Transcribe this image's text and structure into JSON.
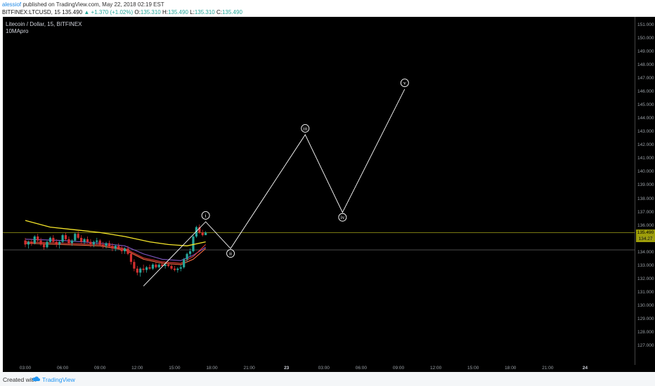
{
  "header": {
    "author": "alessiof",
    "published_text": "published on TradingView.com, May 22, 2018 02:19 EST",
    "symbol": "BITFINEX:LTCUSD, 15",
    "last": "135.490",
    "change_arrow": "▲",
    "change": "+1.370 (+1.02%)",
    "o_label": "O:",
    "o": "135.310",
    "h_label": "H:",
    "h": "135.490",
    "l_label": "L:",
    "l": "135.310",
    "c_label": "C:",
    "c": "135.490"
  },
  "chart_legend": {
    "title": "Litecoin / Dollar, 15, BITFINEX",
    "indicator": "10MApro"
  },
  "price_badges": {
    "last": "135.490",
    "ma": "134.27"
  },
  "footer": {
    "created_with": "Created with",
    "brand": "TradingView"
  },
  "wave_labels": [
    "i",
    "ii",
    "iii",
    "iv",
    "v"
  ],
  "colors": {
    "background": "#000000",
    "candle_up": "#26a69a",
    "candle_down": "#d32f2f",
    "ma_yellow": "#f5e52a",
    "wave_line": "#ffffff",
    "price_line": "#9e9e0a",
    "brand": "#2196f3"
  },
  "chart_data": {
    "type": "line",
    "title": "Litecoin / Dollar, 15, BITFINEX",
    "y_ticks": [
      "151.000",
      "150.000",
      "149.000",
      "148.000",
      "147.000",
      "146.000",
      "145.000",
      "144.000",
      "143.000",
      "142.000",
      "141.000",
      "140.000",
      "139.000",
      "138.000",
      "137.000",
      "136.000",
      "135.000",
      "134.000",
      "133.000",
      "132.000",
      "131.000",
      "130.000",
      "129.000",
      "128.000",
      "127.000"
    ],
    "ylim": [
      126.3,
      151.5
    ],
    "x_ticks": [
      "03:00",
      "06:00",
      "09:00",
      "12:00",
      "15:00",
      "18:00",
      "21:00",
      "23",
      "03:00",
      "06:00",
      "09:00",
      "12:00",
      "15:00",
      "18:00",
      "21:00",
      "24"
    ],
    "horizontal_levels": [
      135.49,
      134.2
    ],
    "series": [
      {
        "values": [
          131.5,
          136.3,
          134.3,
          142.8,
          137.0,
          146.2
        ],
        "time_index": [
          9.5,
          14.5,
          16.5,
          22.5,
          25.5,
          30.5
        ]
      }
    ],
    "candles": [
      [
        0.0,
        134.9,
        135.1,
        134.4,
        134.6
      ],
      [
        0.25,
        134.6,
        134.9,
        134.3,
        134.8
      ],
      [
        0.5,
        134.8,
        135.0,
        134.5,
        134.7
      ],
      [
        0.75,
        134.7,
        135.3,
        134.6,
        135.2
      ],
      [
        1.0,
        135.2,
        135.4,
        134.8,
        134.9
      ],
      [
        1.25,
        134.9,
        135.1,
        134.5,
        134.6
      ],
      [
        1.5,
        134.6,
        134.8,
        134.2,
        134.4
      ],
      [
        1.75,
        134.4,
        134.9,
        134.3,
        134.8
      ],
      [
        2.0,
        134.8,
        135.2,
        134.7,
        135.1
      ],
      [
        2.25,
        135.1,
        135.3,
        134.7,
        134.8
      ],
      [
        2.5,
        134.8,
        135.0,
        134.4,
        134.6
      ],
      [
        2.75,
        134.6,
        134.9,
        134.3,
        134.8
      ],
      [
        3.0,
        134.8,
        135.4,
        134.7,
        135.3
      ],
      [
        3.25,
        135.3,
        135.5,
        134.9,
        135.0
      ],
      [
        3.5,
        135.0,
        135.2,
        134.6,
        134.7
      ],
      [
        3.75,
        134.7,
        135.0,
        134.5,
        134.9
      ],
      [
        4.0,
        134.9,
        135.5,
        134.8,
        135.4
      ],
      [
        4.25,
        135.4,
        135.6,
        135.0,
        135.1
      ],
      [
        4.5,
        135.1,
        135.3,
        134.7,
        134.8
      ],
      [
        4.75,
        134.8,
        135.1,
        134.6,
        135.0
      ],
      [
        5.0,
        135.0,
        135.2,
        134.7,
        134.8
      ],
      [
        5.25,
        134.8,
        135.0,
        134.4,
        134.6
      ],
      [
        5.5,
        134.6,
        134.9,
        134.4,
        134.8
      ],
      [
        5.75,
        134.8,
        135.1,
        134.6,
        134.9
      ],
      [
        6.0,
        134.9,
        135.0,
        134.5,
        134.6
      ],
      [
        6.25,
        134.6,
        134.8,
        134.3,
        134.5
      ],
      [
        6.5,
        134.5,
        134.8,
        134.3,
        134.7
      ],
      [
        6.75,
        134.7,
        134.9,
        134.4,
        134.5
      ],
      [
        7.0,
        134.5,
        134.7,
        134.1,
        134.3
      ],
      [
        7.25,
        134.3,
        134.6,
        134.1,
        134.5
      ],
      [
        7.5,
        134.5,
        134.7,
        134.2,
        134.3
      ],
      [
        7.75,
        134.3,
        134.5,
        133.9,
        134.1
      ],
      [
        8.0,
        134.1,
        134.4,
        133.9,
        134.3
      ],
      [
        8.25,
        134.3,
        134.5,
        133.8,
        133.9
      ],
      [
        8.5,
        133.9,
        134.1,
        133.1,
        133.3
      ],
      [
        8.75,
        133.3,
        133.5,
        132.6,
        132.8
      ],
      [
        9.0,
        132.8,
        133.0,
        132.3,
        132.5
      ],
      [
        9.25,
        132.5,
        132.9,
        132.2,
        132.8
      ],
      [
        9.5,
        132.8,
        133.1,
        132.5,
        132.7
      ],
      [
        9.75,
        132.7,
        133.0,
        132.5,
        132.9
      ],
      [
        10.0,
        132.9,
        133.1,
        132.7,
        132.8
      ],
      [
        10.25,
        132.8,
        133.2,
        132.7,
        133.1
      ],
      [
        10.5,
        133.1,
        133.3,
        132.8,
        132.9
      ],
      [
        10.75,
        132.9,
        133.2,
        132.8,
        133.1
      ],
      [
        11.0,
        133.1,
        133.3,
        132.9,
        133.0
      ],
      [
        11.25,
        133.0,
        133.2,
        132.8,
        133.1
      ],
      [
        11.5,
        133.1,
        133.3,
        132.9,
        133.0
      ],
      [
        11.75,
        133.0,
        133.1,
        132.7,
        132.8
      ],
      [
        12.0,
        132.8,
        133.0,
        132.6,
        132.7
      ],
      [
        12.25,
        132.7,
        132.9,
        132.5,
        132.8
      ],
      [
        12.5,
        132.8,
        133.1,
        132.6,
        132.9
      ],
      [
        12.75,
        132.9,
        133.6,
        132.8,
        133.5
      ],
      [
        13.0,
        133.5,
        134.0,
        133.3,
        133.9
      ],
      [
        13.25,
        133.9,
        134.3,
        133.7,
        134.1
      ],
      [
        13.5,
        134.1,
        135.3,
        134.0,
        135.2
      ],
      [
        13.75,
        135.2,
        136.0,
        135.1,
        135.9
      ],
      [
        14.0,
        135.9,
        136.1,
        135.4,
        135.5
      ],
      [
        14.25,
        135.5,
        135.7,
        135.2,
        135.3
      ],
      [
        14.5,
        135.3,
        135.6,
        135.3,
        135.49
      ]
    ],
    "ma_yellow": [
      [
        0,
        136.4
      ],
      [
        2,
        135.9
      ],
      [
        4,
        135.7
      ],
      [
        6,
        135.5
      ],
      [
        8,
        135.2
      ],
      [
        10,
        134.8
      ],
      [
        11.5,
        134.6
      ],
      [
        13,
        134.5
      ],
      [
        14.5,
        134.8
      ]
    ],
    "ma_others": [
      {
        "color": "#7e57c2",
        "points": [
          [
            0,
            135.0
          ],
          [
            3,
            134.9
          ],
          [
            6,
            134.7
          ],
          [
            8,
            134.5
          ],
          [
            9.5,
            133.9
          ],
          [
            11,
            133.5
          ],
          [
            12.5,
            133.4
          ],
          [
            13.5,
            133.8
          ],
          [
            14.5,
            134.4
          ]
        ]
      },
      {
        "color": "#e53935",
        "points": [
          [
            0,
            134.8
          ],
          [
            3,
            134.7
          ],
          [
            6,
            134.6
          ],
          [
            8,
            134.3
          ],
          [
            9.5,
            133.6
          ],
          [
            11,
            133.3
          ],
          [
            12.5,
            133.2
          ],
          [
            13.5,
            133.7
          ],
          [
            14.5,
            134.6
          ]
        ]
      },
      {
        "color": "#ff7043",
        "points": [
          [
            0,
            134.7
          ],
          [
            3,
            134.6
          ],
          [
            6,
            134.5
          ],
          [
            8,
            134.2
          ],
          [
            9.5,
            133.5
          ],
          [
            11,
            133.2
          ],
          [
            12.5,
            133.1
          ],
          [
            13.5,
            133.5
          ],
          [
            14.5,
            134.3
          ]
        ]
      }
    ]
  }
}
